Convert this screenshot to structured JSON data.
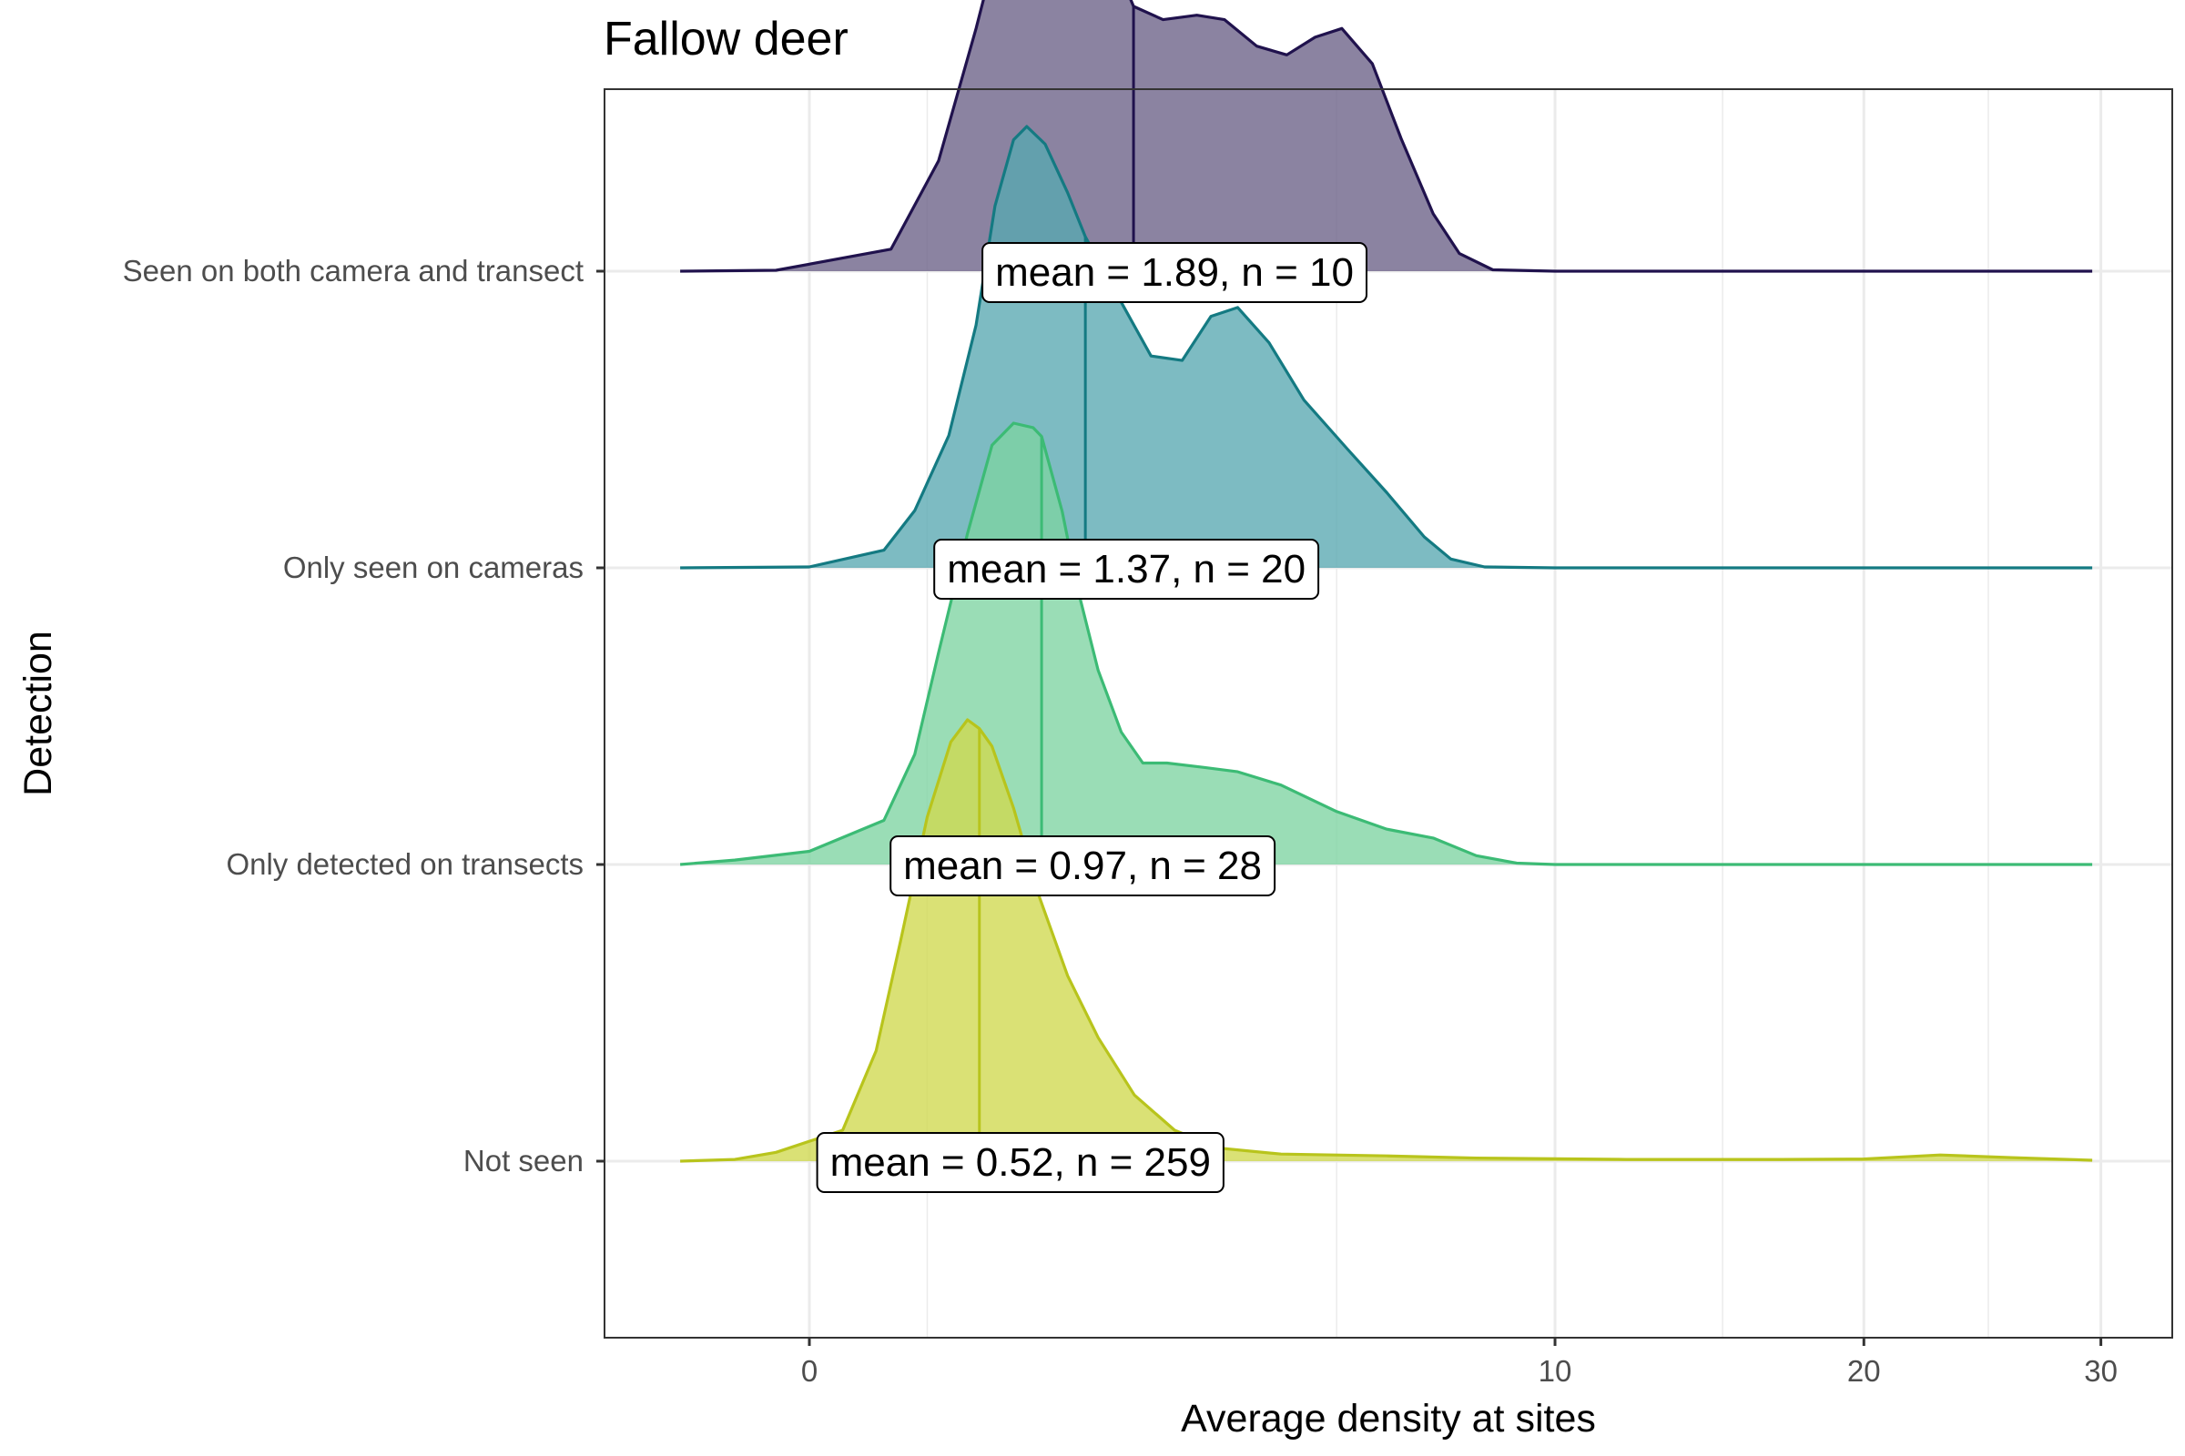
{
  "chart_data": {
    "type": "ridgeline",
    "title": "Fallow deer",
    "xlabel": "Average density at sites",
    "ylabel": "Detection",
    "x_scale": "sqrt",
    "xlim": [
      -0.5,
      31.5
    ],
    "x_ticks": [
      0,
      10,
      20,
      30
    ],
    "grid": true,
    "categories": [
      "Seen on both camera and transect",
      "Only seen on cameras",
      "Only detected on transects",
      "Not seen"
    ],
    "series": [
      {
        "name": "Seen on both camera and transect",
        "color": "#440154",
        "line_color": "#20124d",
        "fill_color": "#6a6087",
        "mean": 1.89,
        "n": 10,
        "label": "mean = 1.89, n = 10",
        "x_range": [
          -0.3,
          29.6
        ],
        "density": [
          [
            -0.3,
            0
          ],
          [
            -0.02,
            0.002
          ],
          [
            0.12,
            0.05
          ],
          [
            0.3,
            0.25
          ],
          [
            0.5,
            0.55
          ],
          [
            0.7,
            0.82
          ],
          [
            0.87,
            0.98
          ],
          [
            1.0,
            1.0
          ],
          [
            1.13,
            0.97
          ],
          [
            1.35,
            0.86
          ],
          [
            1.6,
            0.74
          ],
          [
            1.89,
            0.6
          ],
          [
            2.25,
            0.57
          ],
          [
            2.7,
            0.58
          ],
          [
            3.1,
            0.57
          ],
          [
            3.6,
            0.51
          ],
          [
            4.1,
            0.49
          ],
          [
            4.6,
            0.53
          ],
          [
            5.1,
            0.55
          ],
          [
            5.7,
            0.47
          ],
          [
            6.3,
            0.3
          ],
          [
            7.0,
            0.13
          ],
          [
            7.6,
            0.04
          ],
          [
            8.4,
            0.003
          ],
          [
            10,
            0
          ],
          [
            29.6,
            0
          ]
        ]
      },
      {
        "name": "Only seen on cameras",
        "color": "#21908c",
        "line_color": "#147a82",
        "fill_color": "#59a8b1",
        "mean": 1.37,
        "n": 20,
        "label": "mean = 1.37, n = 20",
        "x_range": [
          -0.3,
          29.6
        ],
        "density": [
          [
            -0.3,
            0
          ],
          [
            0.0,
            0.002
          ],
          [
            0.1,
            0.04
          ],
          [
            0.2,
            0.13
          ],
          [
            0.35,
            0.3
          ],
          [
            0.5,
            0.55
          ],
          [
            0.62,
            0.82
          ],
          [
            0.75,
            0.97
          ],
          [
            0.85,
            1.0
          ],
          [
            1.0,
            0.96
          ],
          [
            1.2,
            0.85
          ],
          [
            1.37,
            0.75
          ],
          [
            1.7,
            0.62
          ],
          [
            2.1,
            0.48
          ],
          [
            2.5,
            0.47
          ],
          [
            2.9,
            0.57
          ],
          [
            3.3,
            0.59
          ],
          [
            3.8,
            0.51
          ],
          [
            4.4,
            0.38
          ],
          [
            5.2,
            0.27
          ],
          [
            6.0,
            0.17
          ],
          [
            6.8,
            0.07
          ],
          [
            7.4,
            0.02
          ],
          [
            8.2,
            0.002
          ],
          [
            10,
            0
          ],
          [
            29.6,
            0
          ]
        ]
      },
      {
        "name": "Only detected on transects",
        "color": "#35b779",
        "line_color": "#3cbb75",
        "fill_color": "#7dd4a2",
        "mean": 0.97,
        "n": 28,
        "label": "mean = 0.97, n = 28",
        "x_range": [
          -0.3,
          29.6
        ],
        "density": [
          [
            -0.3,
            0
          ],
          [
            -0.1,
            0.01
          ],
          [
            0.0,
            0.03
          ],
          [
            0.1,
            0.1
          ],
          [
            0.2,
            0.25
          ],
          [
            0.3,
            0.48
          ],
          [
            0.45,
            0.75
          ],
          [
            0.6,
            0.95
          ],
          [
            0.75,
            1.0
          ],
          [
            0.9,
            0.99
          ],
          [
            0.97,
            0.97
          ],
          [
            1.15,
            0.8
          ],
          [
            1.3,
            0.62
          ],
          [
            1.5,
            0.44
          ],
          [
            1.75,
            0.3
          ],
          [
            2.0,
            0.23
          ],
          [
            2.3,
            0.23
          ],
          [
            2.8,
            0.22
          ],
          [
            3.3,
            0.21
          ],
          [
            4.0,
            0.18
          ],
          [
            5.0,
            0.12
          ],
          [
            6.0,
            0.08
          ],
          [
            7.0,
            0.06
          ],
          [
            8.0,
            0.02
          ],
          [
            9.0,
            0.003
          ],
          [
            10,
            0
          ],
          [
            29.6,
            0
          ]
        ]
      },
      {
        "name": "Not seen",
        "color": "#fde725",
        "line_color": "#b8c41c",
        "fill_color": "#cfd94e",
        "mean": 0.52,
        "n": 259,
        "label": "mean = 0.52, n = 259",
        "x_range": [
          -0.3,
          29.6
        ],
        "density": [
          [
            -0.3,
            0
          ],
          [
            -0.1,
            0.004
          ],
          [
            -0.02,
            0.02
          ],
          [
            0.02,
            0.07
          ],
          [
            0.08,
            0.25
          ],
          [
            0.15,
            0.5
          ],
          [
            0.25,
            0.78
          ],
          [
            0.36,
            0.95
          ],
          [
            0.45,
            1.0
          ],
          [
            0.52,
            0.98
          ],
          [
            0.6,
            0.94
          ],
          [
            0.75,
            0.8
          ],
          [
            0.95,
            0.6
          ],
          [
            1.2,
            0.42
          ],
          [
            1.5,
            0.28
          ],
          [
            1.9,
            0.15
          ],
          [
            2.4,
            0.07
          ],
          [
            3.0,
            0.03
          ],
          [
            4.0,
            0.016
          ],
          [
            6.0,
            0.012
          ],
          [
            8.0,
            0.007
          ],
          [
            12.0,
            0.004
          ],
          [
            17.0,
            0.004
          ],
          [
            20.0,
            0.005
          ],
          [
            23.0,
            0.014
          ],
          [
            26.0,
            0.008
          ],
          [
            29.6,
            0.002
          ]
        ]
      }
    ]
  }
}
